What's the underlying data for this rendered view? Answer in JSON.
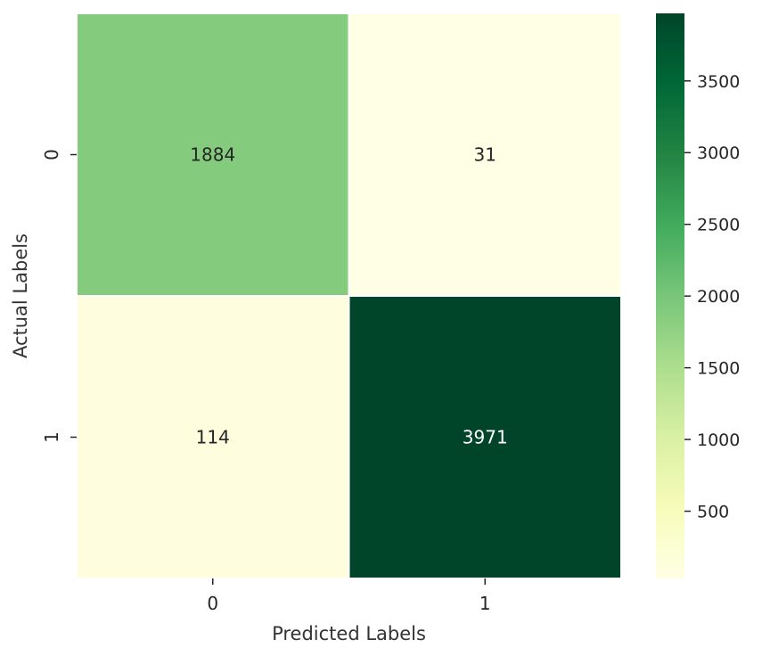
{
  "chart_data": {
    "type": "heatmap",
    "title": "",
    "xlabel": "Predicted Labels",
    "ylabel": "Actual Labels",
    "x_categories": [
      "0",
      "1"
    ],
    "y_categories": [
      "0",
      "1"
    ],
    "values": [
      [
        1884,
        31
      ],
      [
        114,
        3971
      ]
    ],
    "colormap": "YlGn",
    "colorbar": {
      "range": [
        31,
        3971
      ],
      "ticks": [
        500,
        1000,
        1500,
        2000,
        2500,
        3000,
        3500
      ],
      "tick_labels": [
        "500",
        "1000",
        "1500",
        "2000",
        "2500",
        "3000",
        "3500"
      ],
      "placement": "right"
    },
    "colors": [
      "#ffffe5",
      "#f7fcb9",
      "#d9f0a3",
      "#addd8e",
      "#78c679",
      "#41ab5d",
      "#238443",
      "#006837",
      "#004529"
    ]
  }
}
